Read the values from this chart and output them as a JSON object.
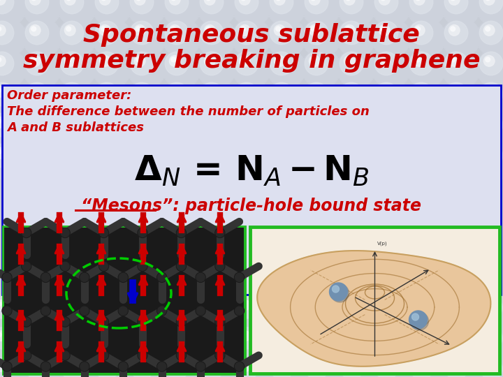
{
  "title_line1": "Spontaneous sublattice",
  "title_line2": "symmetry breaking in graphene",
  "title_color": "#cc0000",
  "title_fontsize": 26,
  "title_fontweight": "bold",
  "box_bg_color": "#dde0f0",
  "box_border_color": "#0000cc",
  "order_param_text1": "Order parameter:",
  "order_param_text2": "The difference between the number of particles on",
  "order_param_text3": "A and B sublattices",
  "order_param_color": "#cc0000",
  "order_param_fontsize": 13,
  "order_param_fontweight": "bold",
  "formula_color": "#000000",
  "formula_fontsize": 36,
  "mesons_text": "“Mesons”: particle-hole bound state",
  "mesons_color": "#cc0000",
  "mesons_fontsize": 17,
  "mesons_fontweight": "bold",
  "pearl_color_base": "#d8dde5",
  "pearl_highlight": "#f0f2f5",
  "pearl_shadow": "#b8bdc6",
  "bg_color": "#c8cdd6",
  "bottom_bg": "#b5bac3",
  "left_img_border": "#22bb22",
  "right_img_border": "#22bb22"
}
